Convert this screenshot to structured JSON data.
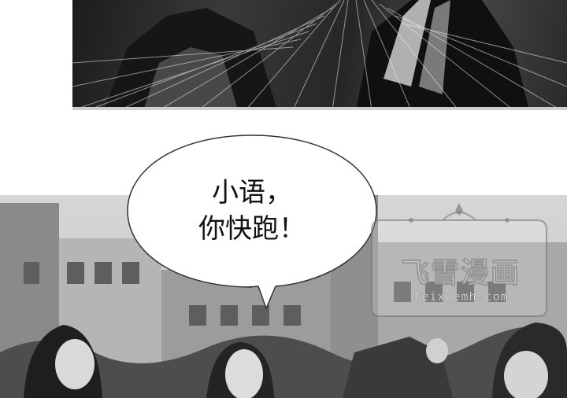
{
  "speech_bubble": {
    "line1": "小语，",
    "line2": "你快跑！"
  },
  "watermark": {
    "title": "飞雪漫画",
    "url": "feixuemh.com"
  },
  "colors": {
    "background": "#ffffff",
    "text": "#111111",
    "watermark_outline": "#5a5a5a"
  },
  "panels": [
    {
      "name": "top-panel",
      "description_icon": "action-scene-icon"
    },
    {
      "name": "bottom-panel",
      "description_icon": "campus-scene-icon"
    }
  ]
}
